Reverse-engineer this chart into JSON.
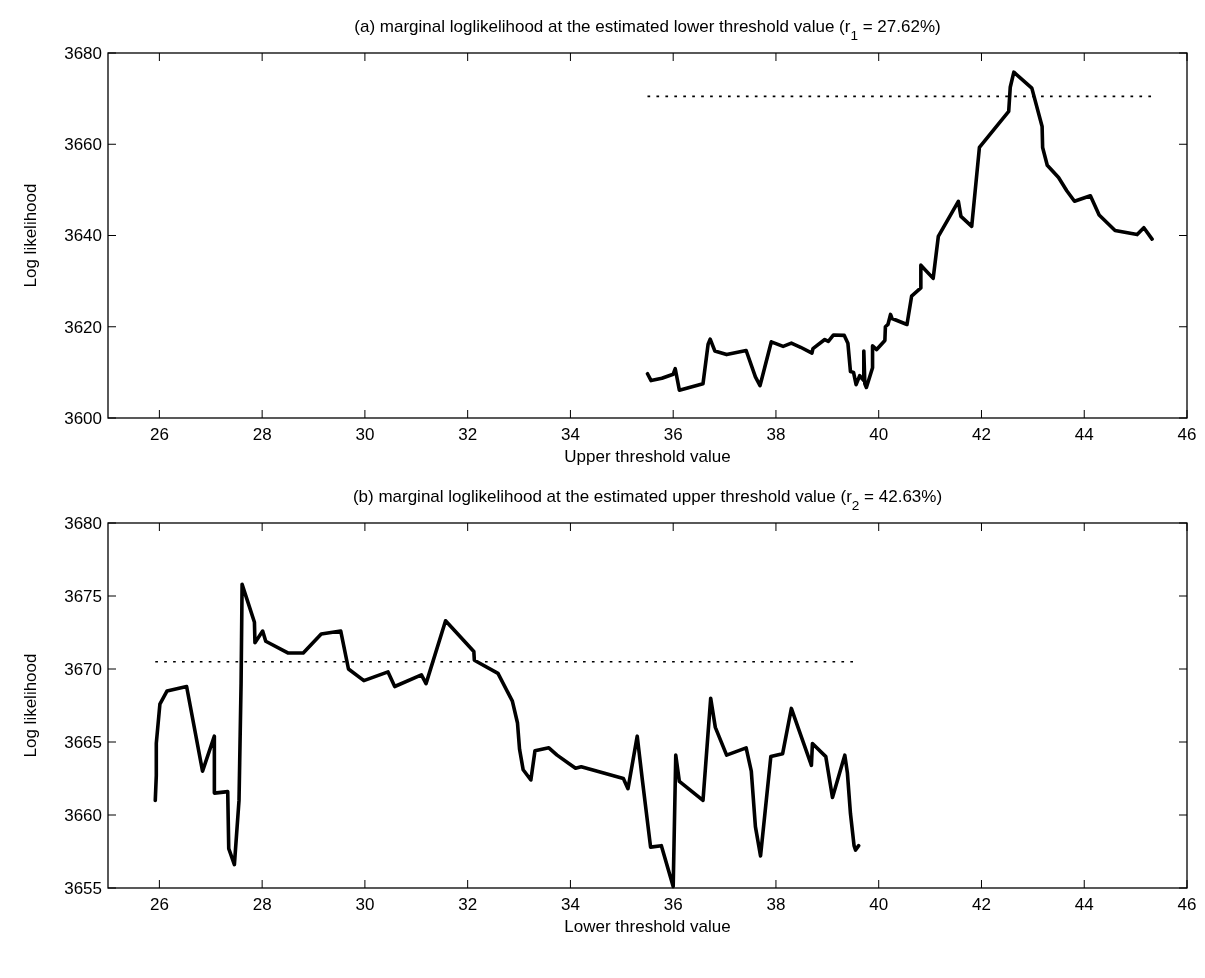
{
  "chart_data": [
    {
      "type": "line",
      "title": "(a) marginal loglikelihood at the estimated lower threshold value (r$_{1}$ = 27.62%)",
      "xlabel": "Upper threshold value",
      "ylabel": "Log likelihood",
      "xlim": [
        25,
        46
      ],
      "xticks": [
        26,
        28,
        30,
        32,
        34,
        36,
        38,
        40,
        42,
        44,
        46
      ],
      "ylim": [
        3600,
        3680
      ],
      "yticks": [
        3600,
        3620,
        3640,
        3660,
        3680
      ],
      "marker": "none",
      "series": [
        {
          "color": "#000000",
          "line_style": "solid",
          "x": [
            35.5,
            35.57,
            35.78,
            36.0,
            36.04,
            36.12,
            36.58,
            36.68,
            36.72,
            36.81,
            37.04,
            37.42,
            37.6,
            37.69,
            37.91,
            38.14,
            38.3,
            38.48,
            38.7,
            38.72,
            38.95,
            39.02,
            39.12,
            39.33,
            39.4,
            39.45,
            39.51,
            39.56,
            39.63,
            39.71,
            39.71,
            39.73,
            39.76,
            39.88,
            39.88,
            39.96,
            40.12,
            40.13,
            40.18,
            40.23,
            40.26,
            40.55,
            40.64,
            40.82,
            40.82,
            41.06,
            41.16,
            41.55,
            41.6,
            41.81,
            41.96,
            42.53,
            42.56,
            42.63,
            42.98,
            43.18,
            43.19,
            43.28,
            43.5,
            43.66,
            43.81,
            44.12,
            44.29,
            44.6,
            45.03,
            45.16,
            45.32
          ],
          "values": [
            3609.7,
            3608.2,
            3608.7,
            3609.6,
            3610.8,
            3606.1,
            3607.5,
            3616.2,
            3617.3,
            3614.7,
            3613.9,
            3614.8,
            3609,
            3607.1,
            3616.7,
            3615.7,
            3616.4,
            3615.5,
            3614.2,
            3615.2,
            3617.2,
            3616.8,
            3618.2,
            3618.1,
            3616.4,
            3610.2,
            3610,
            3607.3,
            3609.3,
            3608.2,
            3614.7,
            3607.5,
            3606.7,
            3611,
            3615.8,
            3615,
            3617,
            3620,
            3620.5,
            3622.7,
            3621.8,
            3620.5,
            3626.7,
            3628.5,
            3633.5,
            3630.6,
            3639.8,
            3647.5,
            3644.2,
            3642,
            3659.3,
            3667.2,
            3672.5,
            3675.8,
            3672.3,
            3663.9,
            3659.3,
            3655.4,
            3652.7,
            3649.8,
            3647.5,
            3648.7,
            3644.5,
            3641.1,
            3640.2,
            3641.7,
            3639.2
          ]
        },
        {
          "color": "#000000",
          "line_style": "dotted",
          "x": [
            35.5,
            45.3
          ],
          "values": [
            3670.5,
            3670.5
          ]
        }
      ]
    },
    {
      "type": "line",
      "title": "(b) marginal loglikelihood at the estimated upper threshold value (r$_{2}$ = 42.63%)",
      "xlabel": "Lower threshold value",
      "ylabel": "Log likelihood",
      "xlim": [
        25,
        46
      ],
      "xticks": [
        26,
        28,
        30,
        32,
        34,
        36,
        38,
        40,
        42,
        44,
        46
      ],
      "ylim": [
        3655,
        3680
      ],
      "yticks": [
        3655,
        3660,
        3665,
        3670,
        3675,
        3680
      ],
      "marker": "none",
      "series": [
        {
          "color": "#000000",
          "line_style": "solid",
          "x": [
            25.92,
            25.94,
            25.94,
            26.01,
            26.15,
            26.53,
            26.84,
            27.07,
            27.07,
            27.33,
            27.35,
            27.46,
            27.55,
            27.59,
            27.61,
            27.85,
            27.86,
            28.01,
            28.07,
            28.5,
            28.8,
            29.15,
            29.53,
            29.68,
            29.98,
            30.45,
            30.58,
            31.1,
            31.19,
            31.57,
            32.12,
            32.13,
            32.59,
            32.87,
            32.97,
            33.01,
            33.08,
            33.23,
            33.31,
            33.58,
            33.74,
            34.1,
            34.21,
            35.03,
            35.12,
            35.3,
            35.4,
            35.56,
            35.77,
            36.0,
            36.05,
            36.12,
            36.58,
            36.73,
            36.82,
            37.04,
            37.42,
            37.52,
            37.6,
            37.7,
            37.9,
            38.13,
            38.3,
            38.45,
            38.69,
            38.71,
            38.97,
            39.1,
            39.34,
            39.39,
            39.45,
            39.52,
            39.55,
            39.61
          ],
          "values": [
            3661,
            3662.7,
            3664.9,
            3667.6,
            3668.5,
            3668.8,
            3663,
            3665.4,
            3661.5,
            3661.6,
            3657.7,
            3656.6,
            3661,
            3669,
            3675.8,
            3673.2,
            3671.8,
            3672.6,
            3671.9,
            3671.1,
            3671.1,
            3672.4,
            3672.6,
            3670,
            3669.2,
            3669.8,
            3668.8,
            3669.6,
            3669,
            3673.3,
            3671.2,
            3670.6,
            3669.7,
            3667.8,
            3666.3,
            3664.5,
            3663.1,
            3662.4,
            3664.4,
            3664.6,
            3664.1,
            3663.2,
            3663.3,
            3662.5,
            3661.8,
            3665.4,
            3662.4,
            3657.8,
            3657.9,
            3655.1,
            3664.1,
            3662.3,
            3661,
            3668,
            3666,
            3664.1,
            3664.6,
            3663,
            3659.2,
            3657.2,
            3664,
            3664.2,
            3667.3,
            3665.8,
            3663.4,
            3664.9,
            3664,
            3661.2,
            3664.1,
            3662.9,
            3660.1,
            3657.9,
            3657.6,
            3657.9
          ]
        },
        {
          "color": "#000000",
          "line_style": "dotted",
          "x": [
            25.92,
            39.5
          ],
          "values": [
            3670.5,
            3670.5
          ]
        }
      ]
    }
  ]
}
